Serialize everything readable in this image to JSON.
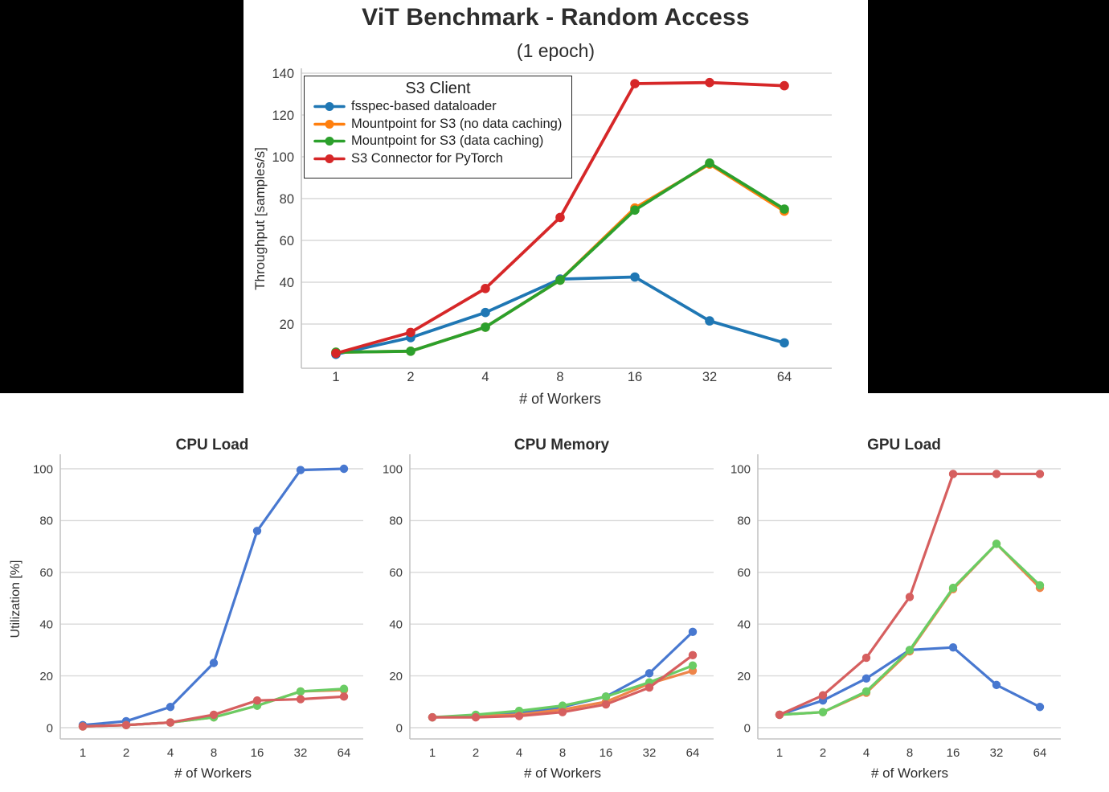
{
  "figure": {
    "background_color": "#000000",
    "panel_color": "#ffffff"
  },
  "palettes": {
    "top": {
      "blue": "#1f77b4",
      "orange": "#ff7f0e",
      "green": "#2ca02c",
      "red": "#d62728"
    },
    "bottom": {
      "blue": "#4878d0",
      "orange": "#ee854a",
      "green": "#6acc64",
      "red": "#d65f5f"
    },
    "grid": "#d9d9d9",
    "spine": "#c4c4c4",
    "tick_text": "#3a3a3a"
  },
  "chart_data": [
    {
      "type": "line",
      "title": "ViT Benchmark - Random Access",
      "subtitle": "(1 epoch)",
      "xlabel": "# of Workers",
      "ylabel": "Throughput [samples/s]",
      "palette": "top",
      "x": [
        1,
        2,
        4,
        8,
        16,
        32,
        64
      ],
      "x_scale": "log2",
      "yticks": [
        20,
        40,
        60,
        80,
        100,
        120,
        140
      ],
      "ylim": [
        0,
        142
      ],
      "grid": true,
      "legend_title": "S3 Client",
      "legend_position": "upper left",
      "series": [
        {
          "name": "fsspec-based dataloader",
          "color_key": "blue",
          "values": [
            5.5,
            13.5,
            25.5,
            41.5,
            42.5,
            21.5,
            11
          ]
        },
        {
          "name": "Mountpoint for S3 (no data caching)",
          "color_key": "orange",
          "values": [
            6.5,
            7,
            18.5,
            41,
            75.5,
            96.5,
            74
          ]
        },
        {
          "name": "Mountpoint for S3 (data caching)",
          "color_key": "green",
          "values": [
            6.5,
            7,
            18.5,
            41,
            74.5,
            97,
            75
          ]
        },
        {
          "name": "S3 Connector for PyTorch",
          "color_key": "red",
          "values": [
            6,
            16,
            37,
            71,
            135,
            135.5,
            134
          ]
        }
      ]
    },
    {
      "type": "line",
      "title": "CPU Load",
      "xlabel": "# of Workers",
      "ylabel": "Utilization [%]",
      "palette": "bottom",
      "x": [
        1,
        2,
        4,
        8,
        16,
        32,
        64
      ],
      "x_scale": "log2",
      "yticks": [
        0,
        20,
        40,
        60,
        80,
        100
      ],
      "ylim": [
        -4,
        105
      ],
      "grid": true,
      "series": [
        {
          "name": "fsspec-based dataloader",
          "color_key": "blue",
          "values": [
            1,
            2.5,
            8,
            25,
            76,
            99.5,
            100
          ]
        },
        {
          "name": "Mountpoint for S3 (no data caching)",
          "color_key": "orange",
          "values": [
            0.5,
            1,
            2,
            4,
            8.5,
            14,
            14.5
          ]
        },
        {
          "name": "Mountpoint for S3 (data caching)",
          "color_key": "green",
          "values": [
            0.5,
            1,
            2,
            4,
            8.5,
            14,
            15
          ]
        },
        {
          "name": "S3 Connector for PyTorch",
          "color_key": "red",
          "values": [
            0.5,
            1,
            2,
            5,
            10.5,
            11,
            12
          ]
        }
      ]
    },
    {
      "type": "line",
      "title": "CPU Memory",
      "xlabel": "# of Workers",
      "palette": "bottom",
      "x": [
        1,
        2,
        4,
        8,
        16,
        32,
        64
      ],
      "x_scale": "log2",
      "yticks": [
        0,
        20,
        40,
        60,
        80,
        100
      ],
      "ylim": [
        -4,
        105
      ],
      "grid": true,
      "series": [
        {
          "name": "fsspec-based dataloader",
          "color_key": "blue",
          "values": [
            4,
            4.5,
            5.5,
            8,
            12,
            21,
            37
          ]
        },
        {
          "name": "Mountpoint for S3 (no data caching)",
          "color_key": "orange",
          "values": [
            4,
            4.5,
            5,
            7,
            10,
            17,
            22
          ]
        },
        {
          "name": "Mountpoint for S3 (data caching)",
          "color_key": "green",
          "values": [
            4,
            5,
            6.5,
            8.5,
            12,
            17.5,
            24
          ]
        },
        {
          "name": "S3 Connector for PyTorch",
          "color_key": "red",
          "values": [
            4,
            4,
            4.5,
            6,
            9,
            15.5,
            28
          ]
        }
      ]
    },
    {
      "type": "line",
      "title": "GPU Load",
      "xlabel": "# of Workers",
      "palette": "bottom",
      "x": [
        1,
        2,
        4,
        8,
        16,
        32,
        64
      ],
      "x_scale": "log2",
      "yticks": [
        0,
        20,
        40,
        60,
        80,
        100
      ],
      "ylim": [
        -4,
        105
      ],
      "grid": true,
      "series": [
        {
          "name": "fsspec-based dataloader",
          "color_key": "blue",
          "values": [
            5,
            10.5,
            19,
            30,
            31,
            16.5,
            8
          ]
        },
        {
          "name": "Mountpoint for S3 (no data caching)",
          "color_key": "orange",
          "values": [
            5,
            6,
            13.5,
            29.5,
            53.5,
            71,
            54
          ]
        },
        {
          "name": "Mountpoint for S3 (data caching)",
          "color_key": "green",
          "values": [
            5,
            6,
            14,
            30,
            54,
            71,
            55
          ]
        },
        {
          "name": "S3 Connector for PyTorch",
          "color_key": "red",
          "values": [
            5,
            12.5,
            27,
            50.5,
            98,
            98,
            98
          ]
        }
      ]
    }
  ]
}
